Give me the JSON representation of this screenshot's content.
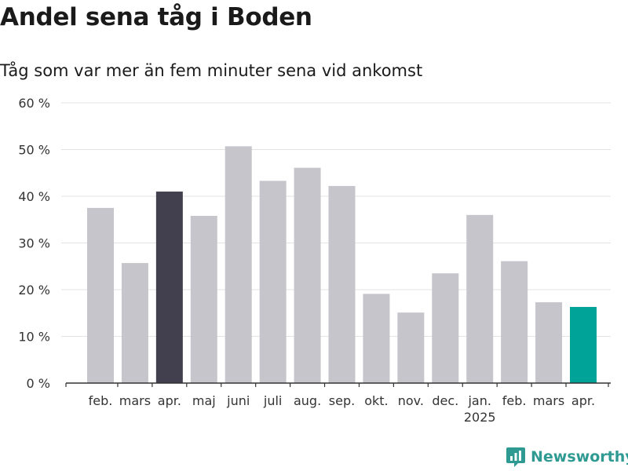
{
  "chart_data": {
    "type": "bar",
    "title": "Andel sena tåg i Boden",
    "subtitle": "Tåg som var mer än fem minuter sena vid ankomst",
    "categories": [
      "feb.",
      "mars",
      "apr.",
      "maj",
      "juni",
      "juli",
      "aug.",
      "sep.",
      "okt.",
      "nov.",
      "dec.",
      "jan.",
      "feb.",
      "mars",
      "apr."
    ],
    "year_labels": [
      "",
      "",
      "",
      "",
      "",
      "",
      "",
      "",
      "",
      "",
      "",
      "2025",
      "",
      "",
      ""
    ],
    "values": [
      37.5,
      25.7,
      41.0,
      35.8,
      50.7,
      43.3,
      46.1,
      42.2,
      19.1,
      15.1,
      23.5,
      36.0,
      26.1,
      17.3,
      16.3
    ],
    "ylim": [
      0,
      60
    ],
    "yticks": [
      0,
      10,
      20,
      30,
      40,
      50,
      60
    ],
    "ytick_labels": [
      "0 %",
      "10 %",
      "20 %",
      "30 %",
      "40 %",
      "50 %",
      "60 %"
    ],
    "grid": true,
    "colors": {
      "default": "#c6c5cb",
      "highlight_prev_year": "#42404e",
      "highlight_current": "#00a397",
      "grid": "#e3e3e3",
      "axis": "#333333"
    },
    "highlight": {
      "2": "highlight_prev_year",
      "14": "highlight_current"
    }
  },
  "brand": {
    "name": "Newsworthy",
    "color": "#2e9a92",
    "icon": "newsworthy-logo-icon"
  }
}
